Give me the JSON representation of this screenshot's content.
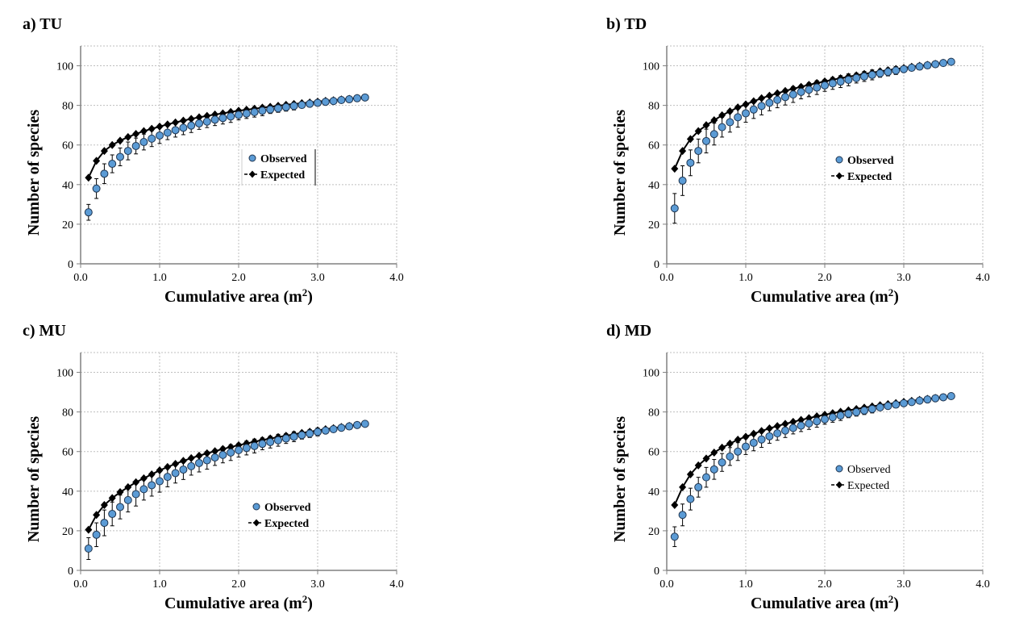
{
  "chart_data": [
    {
      "type": "scatter",
      "panel_label": "a)  TU",
      "xlabel": "Cumulative area (m",
      "xlabel_sup": "2",
      "xlabel_end": ")",
      "ylabel": "Number of species",
      "xlim": [
        0,
        4.0
      ],
      "ylim": [
        0,
        110
      ],
      "xticks": [
        "0.0",
        "1.0",
        "2.0",
        "3.0",
        "4.0"
      ],
      "yticks": [
        "0",
        "20",
        "40",
        "60",
        "80",
        "100"
      ],
      "grid": true,
      "legend": {
        "observed": "Observed",
        "expected": "Expected",
        "bold": true
      },
      "x": [
        0.1,
        0.2,
        0.3,
        0.4,
        0.5,
        0.6,
        0.7,
        0.8,
        0.9,
        1.0,
        1.1,
        1.2,
        1.3,
        1.4,
        1.5,
        1.6,
        1.7,
        1.8,
        1.9,
        2.0,
        2.1,
        2.2,
        2.3,
        2.4,
        2.5,
        2.6,
        2.7,
        2.8,
        2.9,
        3.0,
        3.1,
        3.2,
        3.3,
        3.4,
        3.5,
        3.6
      ],
      "observed": [
        26,
        38,
        45.5,
        50.5,
        54,
        57,
        59.5,
        61.5,
        63.2,
        64.8,
        66.2,
        67.5,
        68.7,
        69.8,
        70.9,
        71.8,
        72.8,
        73.6,
        74.4,
        75.2,
        75.9,
        76.6,
        77.3,
        77.9,
        78.5,
        79.1,
        79.7,
        80.2,
        80.8,
        81.3,
        81.8,
        82.2,
        82.7,
        83.1,
        83.6,
        84.0
      ],
      "observed_error": [
        4,
        5,
        5,
        4.5,
        4.5,
        4.5,
        4,
        4,
        4,
        4,
        3.5,
        3.5,
        3.5,
        3.5,
        3,
        3,
        3,
        3,
        3,
        2.5,
        2.5,
        2.5,
        2.5,
        2,
        2,
        2,
        2,
        1.5,
        1.5,
        1.5,
        1,
        1,
        1,
        0.5,
        0.5,
        0
      ],
      "expected": [
        43.5,
        52,
        57,
        60,
        62.2,
        64,
        65.6,
        67,
        68.2,
        69.3,
        70.4,
        71.4,
        72.3,
        73.2,
        74.0,
        74.7,
        75.4,
        76.0,
        76.7,
        77.3,
        77.8,
        78.3,
        78.9,
        79.3,
        79.8,
        80.3,
        80.7,
        81.1,
        81.5,
        81.9,
        82.3,
        82.6,
        83.0,
        83.3,
        83.7,
        84.0
      ]
    },
    {
      "type": "scatter",
      "panel_label": "b)  TD",
      "xlabel": "Cumulative area (m",
      "xlabel_sup": "2",
      "xlabel_end": ")",
      "ylabel": "Number of species",
      "xlim": [
        0,
        4.0
      ],
      "ylim": [
        0,
        110
      ],
      "xticks": [
        "0.0",
        "1.0",
        "2.0",
        "3.0",
        "4.0"
      ],
      "yticks": [
        "0",
        "20",
        "40",
        "60",
        "80",
        "100"
      ],
      "grid": true,
      "legend": {
        "observed": "Observed",
        "expected": "Expected",
        "bold": true
      },
      "x": [
        0.1,
        0.2,
        0.3,
        0.4,
        0.5,
        0.6,
        0.7,
        0.8,
        0.9,
        1.0,
        1.1,
        1.2,
        1.3,
        1.4,
        1.5,
        1.6,
        1.7,
        1.8,
        1.9,
        2.0,
        2.1,
        2.2,
        2.3,
        2.4,
        2.5,
        2.6,
        2.7,
        2.8,
        2.9,
        3.0,
        3.1,
        3.2,
        3.3,
        3.4,
        3.5,
        3.6
      ],
      "observed": [
        28,
        42,
        51,
        57,
        62,
        65.5,
        69,
        71.5,
        74,
        76,
        77.9,
        79.7,
        81.3,
        82.8,
        84.2,
        85.5,
        86.8,
        87.9,
        89.0,
        90.1,
        91.1,
        92.0,
        92.9,
        93.8,
        94.6,
        95.4,
        96.2,
        96.9,
        97.6,
        98.3,
        99.0,
        99.6,
        100.2,
        100.8,
        101.4,
        102
      ],
      "observed_error": [
        7.5,
        7.5,
        6.5,
        6,
        6,
        5.5,
        5,
        5,
        5,
        4.5,
        4.5,
        4.5,
        4,
        4,
        4,
        4,
        3.5,
        3.5,
        3.5,
        3,
        3,
        3,
        3,
        2.5,
        2.5,
        2.5,
        2,
        2,
        2,
        1.5,
        1.5,
        1,
        1,
        0.5,
        0.5,
        0
      ],
      "expected": [
        48,
        57,
        63,
        67,
        70,
        72.5,
        75,
        77,
        79,
        80.5,
        82.1,
        83.6,
        84.9,
        86.1,
        87.3,
        88.4,
        89.4,
        90.4,
        91.3,
        92.1,
        93.0,
        93.7,
        94.5,
        95.2,
        95.9,
        96.5,
        97.2,
        97.8,
        98.4,
        98.9,
        99.5,
        100.0,
        100.5,
        101.0,
        101.5,
        102
      ]
    },
    {
      "type": "scatter",
      "panel_label": "c)  MU",
      "xlabel": "Cumulative area (m",
      "xlabel_sup": "2",
      "xlabel_end": ")",
      "ylabel": "Number of species",
      "xlim": [
        0,
        4.0
      ],
      "ylim": [
        0,
        110
      ],
      "xticks": [
        "0.0",
        "1.0",
        "2.0",
        "3.0",
        "4.0"
      ],
      "yticks": [
        "0",
        "20",
        "40",
        "60",
        "80",
        "100"
      ],
      "grid": true,
      "legend": {
        "observed": "Observed",
        "expected": "Expected",
        "bold": true
      },
      "x": [
        0.1,
        0.2,
        0.3,
        0.4,
        0.5,
        0.6,
        0.7,
        0.8,
        0.9,
        1.0,
        1.1,
        1.2,
        1.3,
        1.4,
        1.5,
        1.6,
        1.7,
        1.8,
        1.9,
        2.0,
        2.1,
        2.2,
        2.3,
        2.4,
        2.5,
        2.6,
        2.7,
        2.8,
        2.9,
        3.0,
        3.1,
        3.2,
        3.3,
        3.4,
        3.5,
        3.6
      ],
      "observed": [
        11,
        18,
        24,
        28.5,
        32,
        35.5,
        38.5,
        41,
        43,
        45,
        47.2,
        49.1,
        50.9,
        52.6,
        54.2,
        55.6,
        57.0,
        58.3,
        59.5,
        60.7,
        61.8,
        62.8,
        63.9,
        64.8,
        65.7,
        66.6,
        67.5,
        68.3,
        69.1,
        69.9,
        70.6,
        71.3,
        72.0,
        72.7,
        73.4,
        74
      ],
      "observed_error": [
        5.5,
        6,
        6.5,
        6,
        6,
        6,
        6,
        5.5,
        5.5,
        5.5,
        5,
        5,
        5,
        4.5,
        4.5,
        4.5,
        4,
        4,
        4,
        3.5,
        3.5,
        3.5,
        3,
        3,
        3,
        2.5,
        2.5,
        2,
        2,
        2,
        1.5,
        1.5,
        1,
        0.5,
        0.5,
        0
      ],
      "expected": [
        20.5,
        28,
        33,
        36.5,
        39.5,
        42,
        44.5,
        46.5,
        48.5,
        50.5,
        52.2,
        53.8,
        55.3,
        56.7,
        57.9,
        59.1,
        60.2,
        61.3,
        62.3,
        63.2,
        64.1,
        65.0,
        65.8,
        66.6,
        67.3,
        68.0,
        68.7,
        69.4,
        70.0,
        70.7,
        71.3,
        71.8,
        72.4,
        73.0,
        73.5,
        74
      ]
    },
    {
      "type": "scatter",
      "panel_label": "d)  MD",
      "xlabel": "Cumulative area (m",
      "xlabel_sup": "2",
      "xlabel_end": ")",
      "ylabel": "Number of species",
      "xlim": [
        0,
        4.0
      ],
      "ylim": [
        0,
        110
      ],
      "xticks": [
        "0.0",
        "1.0",
        "2.0",
        "3.0",
        "4.0"
      ],
      "yticks": [
        "0",
        "20",
        "40",
        "60",
        "80",
        "100"
      ],
      "grid": true,
      "legend": {
        "observed": "Observed",
        "expected": "Expected",
        "bold": false
      },
      "x": [
        0.1,
        0.2,
        0.3,
        0.4,
        0.5,
        0.6,
        0.7,
        0.8,
        0.9,
        1.0,
        1.1,
        1.2,
        1.3,
        1.4,
        1.5,
        1.6,
        1.7,
        1.8,
        1.9,
        2.0,
        2.1,
        2.2,
        2.3,
        2.4,
        2.5,
        2.6,
        2.7,
        2.8,
        2.9,
        3.0,
        3.1,
        3.2,
        3.3,
        3.4,
        3.5,
        3.6
      ],
      "observed": [
        17,
        28,
        36,
        42,
        47,
        51,
        54.5,
        57.5,
        60,
        62.5,
        64.4,
        66.1,
        67.7,
        69.2,
        70.6,
        71.9,
        73.1,
        74.2,
        75.3,
        76.3,
        77.3,
        78.2,
        79.1,
        79.9,
        80.7,
        81.5,
        82.3,
        83.0,
        83.7,
        84.4,
        85.0,
        85.7,
        86.3,
        86.9,
        87.4,
        88
      ],
      "observed_error": [
        5,
        5.5,
        5.5,
        5,
        5,
        5,
        4.5,
        4.5,
        4.5,
        4,
        4,
        4,
        3.5,
        3.5,
        3.5,
        3,
        3,
        3,
        3,
        2.5,
        2.5,
        2.5,
        2,
        2,
        2,
        2,
        1.5,
        1.5,
        1.5,
        1,
        1,
        1,
        0.5,
        0.5,
        0.5,
        0
      ],
      "expected": [
        33,
        42,
        48.5,
        53,
        56.5,
        59.5,
        62,
        64,
        66,
        67.5,
        69.0,
        70.4,
        71.7,
        72.9,
        74.0,
        75.0,
        76.0,
        76.9,
        77.8,
        78.6,
        79.4,
        80.1,
        80.8,
        81.5,
        82.2,
        82.8,
        83.4,
        84.0,
        84.5,
        85.1,
        85.6,
        86.1,
        86.6,
        87.1,
        87.5,
        88
      ]
    }
  ],
  "colors": {
    "observed_fill": "#5b9bd5",
    "observed_stroke": "#1f3550",
    "expected": "#000000",
    "grid": "#bfbfbf",
    "axis": "#808080"
  }
}
